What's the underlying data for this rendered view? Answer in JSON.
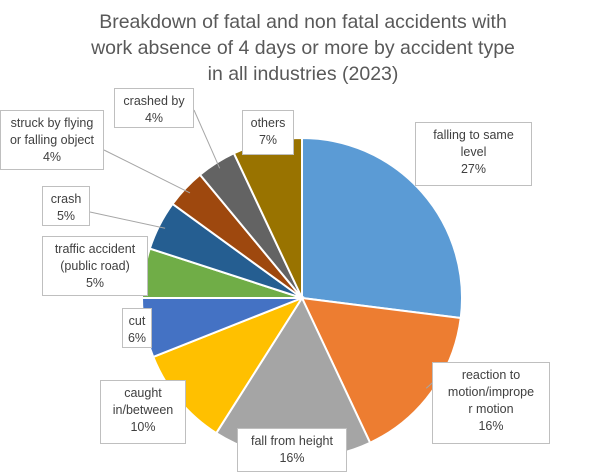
{
  "chart_data": {
    "type": "pie",
    "title_lines": [
      "Breakdown of fatal and non fatal accidents with",
      "work absence of 4 days or more by accident type",
      "in all industries (2023)"
    ],
    "start_angle_deg": 0,
    "direction": "clockwise",
    "slices": [
      {
        "label": [
          "falling to same",
          "level"
        ],
        "value": 27,
        "pct_label": "27%",
        "color": "#5b9bd5"
      },
      {
        "label": [
          "reaction to",
          "motion/imprope",
          "r motion"
        ],
        "value": 16,
        "pct_label": "16%",
        "color": "#ed7d31"
      },
      {
        "label": [
          "fall from height"
        ],
        "value": 16,
        "pct_label": "16%",
        "color": "#a5a5a5"
      },
      {
        "label": [
          "caught",
          "in/between"
        ],
        "value": 10,
        "pct_label": "10%",
        "color": "#ffc000"
      },
      {
        "label": [
          "cut"
        ],
        "value": 6,
        "pct_label": "6%",
        "color": "#4472c4"
      },
      {
        "label": [
          "traffic accident",
          "(public road)"
        ],
        "value": 5,
        "pct_label": "5%",
        "color": "#70ad47"
      },
      {
        "label": [
          "crash"
        ],
        "value": 5,
        "pct_label": "5%",
        "color": "#255e91"
      },
      {
        "label": [
          "struck by flying",
          "or falling object"
        ],
        "value": 4,
        "pct_label": "4%",
        "color": "#9e480e"
      },
      {
        "label": [
          "crashed by"
        ],
        "value": 4,
        "pct_label": "4%",
        "color": "#636363"
      },
      {
        "label": [
          "others"
        ],
        "value": 7,
        "pct_label": "7%",
        "color": "#997300"
      }
    ]
  }
}
